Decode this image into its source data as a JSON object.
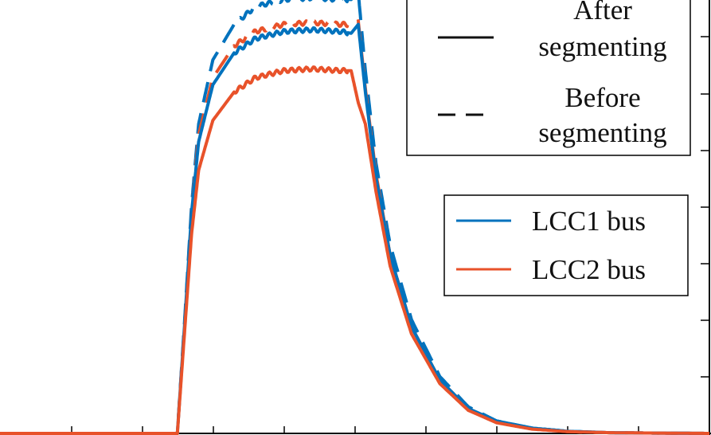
{
  "chart_data": {
    "type": "line",
    "title": "",
    "xlabel": "",
    "ylabel": "",
    "xlim": [
      0,
      10
    ],
    "ylim": [
      0,
      1.25
    ],
    "grid": false,
    "colors": {
      "lcc1": "#0072BD",
      "lcc2": "#E8522A",
      "axis": "#000000"
    },
    "legend_style": {
      "placement": "top-right",
      "entries": [
        {
          "label_lines": [
            "After",
            "segmenting"
          ],
          "linestyle": "solid"
        },
        {
          "label_lines": [
            "Before",
            "segmenting"
          ],
          "linestyle": "dashed"
        }
      ]
    },
    "legend_bus": {
      "placement": "right",
      "entries": [
        {
          "label": "LCC1 bus",
          "color": "#0072BD"
        },
        {
          "label": "LCC2 bus",
          "color": "#E8522A"
        }
      ]
    },
    "x": [
      0,
      1,
      2,
      2.5,
      2.6,
      2.7,
      2.8,
      3,
      3.3,
      3.6,
      4,
      4.4,
      4.8,
      4.95,
      5.05,
      5.15,
      5.3,
      5.5,
      5.8,
      6.2,
      6.6,
      7,
      7.5,
      8,
      8.6,
      9.2,
      10
    ],
    "series": [
      {
        "name": "LCC1 bus",
        "segmenting": "after",
        "linestyle": "solid",
        "color": "#0072BD",
        "values": [
          0,
          0,
          0,
          0,
          0.3,
          0.62,
          0.82,
          0.98,
          1.07,
          1.11,
          1.13,
          1.135,
          1.13,
          1.125,
          1.15,
          0.96,
          0.72,
          0.5,
          0.3,
          0.15,
          0.07,
          0.035,
          0.015,
          0.006,
          0.002,
          0.001,
          0
        ]
      },
      {
        "name": "LCC2 bus",
        "segmenting": "after",
        "linestyle": "solid",
        "color": "#E8522A",
        "values": [
          0,
          0,
          0,
          0,
          0.28,
          0.56,
          0.74,
          0.88,
          0.96,
          1.0,
          1.02,
          1.025,
          1.02,
          1.02,
          0.93,
          0.87,
          0.68,
          0.47,
          0.28,
          0.14,
          0.065,
          0.03,
          0.012,
          0.005,
          0.002,
          0.001,
          0
        ]
      },
      {
        "name": "LCC1 bus",
        "segmenting": "before",
        "linestyle": "dashed",
        "color": "#0072BD",
        "values": [
          0,
          0,
          0,
          0,
          0.31,
          0.64,
          0.87,
          1.05,
          1.15,
          1.2,
          1.22,
          1.225,
          1.22,
          1.22,
          1.24,
          1.02,
          0.76,
          0.53,
          0.32,
          0.16,
          0.075,
          0.035,
          0.015,
          0.006,
          0.002,
          0.001,
          0
        ]
      },
      {
        "name": "LCC2 bus",
        "segmenting": "before",
        "linestyle": "dashed",
        "color": "#E8522A",
        "values": [
          0,
          0,
          0,
          0,
          0.3,
          0.62,
          0.84,
          1.0,
          1.09,
          1.13,
          1.15,
          1.155,
          1.15,
          1.15,
          1.16,
          0.97,
          0.73,
          0.5,
          0.3,
          0.15,
          0.07,
          0.033,
          0.014,
          0.005,
          0.002,
          0.001,
          0
        ]
      }
    ]
  }
}
